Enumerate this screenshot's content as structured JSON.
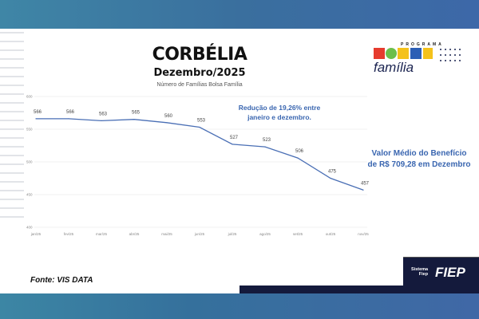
{
  "header": {
    "title": "CORBÉLIA",
    "subtitle": "Dezembro/2025"
  },
  "logo": {
    "text": "PROGRAMA BOLSA família"
  },
  "annotations": {
    "reduction_line1": "Redução de 19,26% entre",
    "reduction_line2": "janeiro e dezembro.",
    "value_line1": "Valor Médio do Benefício",
    "value_line2": "de R$ 709,28 em Dezembro"
  },
  "source": "Fonte: VIS DATA",
  "footer_logo": {
    "line1": "Sistema",
    "line2": "Fiep",
    "brand": "FIEP"
  },
  "colors": {
    "line": "#4a6fb5",
    "annotation": "#3a66b0",
    "navy": "#141a3c"
  },
  "chart_data": {
    "type": "line",
    "title": "Número de Famílias Bolsa Família",
    "categories": [
      "jan/25",
      "fev/25",
      "mar/25",
      "abr/25",
      "mai/25",
      "jun/25",
      "jul/25",
      "ago/25",
      "set/25",
      "out/25",
      "nov/25"
    ],
    "values": [
      566,
      566,
      563,
      565,
      560,
      553,
      527,
      523,
      506,
      475,
      457
    ],
    "ylim": [
      400,
      600
    ],
    "yticks": [
      400,
      450,
      500,
      550,
      600
    ],
    "grid": true,
    "xlabel": "",
    "ylabel": ""
  }
}
